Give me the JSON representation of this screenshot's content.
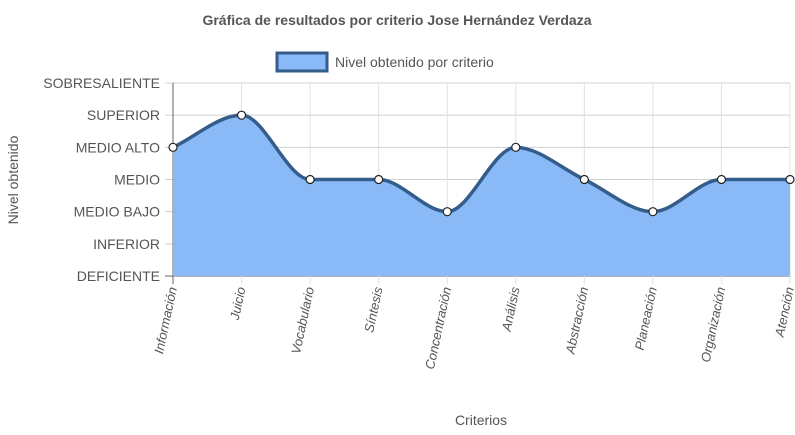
{
  "chart_data": {
    "type": "area",
    "title": "Gráfica de resultados por criterio Jose Hernández Verdaza",
    "xlabel": "Criterios",
    "ylabel": "Nivel obtenido",
    "legend_position": "top",
    "grid": true,
    "y_levels": [
      "DEFICIENTE",
      "INFERIOR",
      "MEDIO BAJO",
      "MEDIO",
      "MEDIO ALTO",
      "SUPERIOR",
      "SOBRESALIENTE"
    ],
    "ylim": [
      0,
      6
    ],
    "categories": [
      "Información",
      "Juicio",
      "Vocabulario",
      "Síntesis",
      "Concentración",
      "Análisis",
      "Abstracción",
      "Planeación",
      "Organización",
      "Atención"
    ],
    "series": [
      {
        "name": "Nivel obtenido por criterio",
        "values": [
          4,
          5,
          3,
          3,
          2,
          4,
          3,
          2,
          3,
          3
        ],
        "fill_color": "#8ab9f7",
        "line_color": "#345d8c"
      }
    ]
  }
}
